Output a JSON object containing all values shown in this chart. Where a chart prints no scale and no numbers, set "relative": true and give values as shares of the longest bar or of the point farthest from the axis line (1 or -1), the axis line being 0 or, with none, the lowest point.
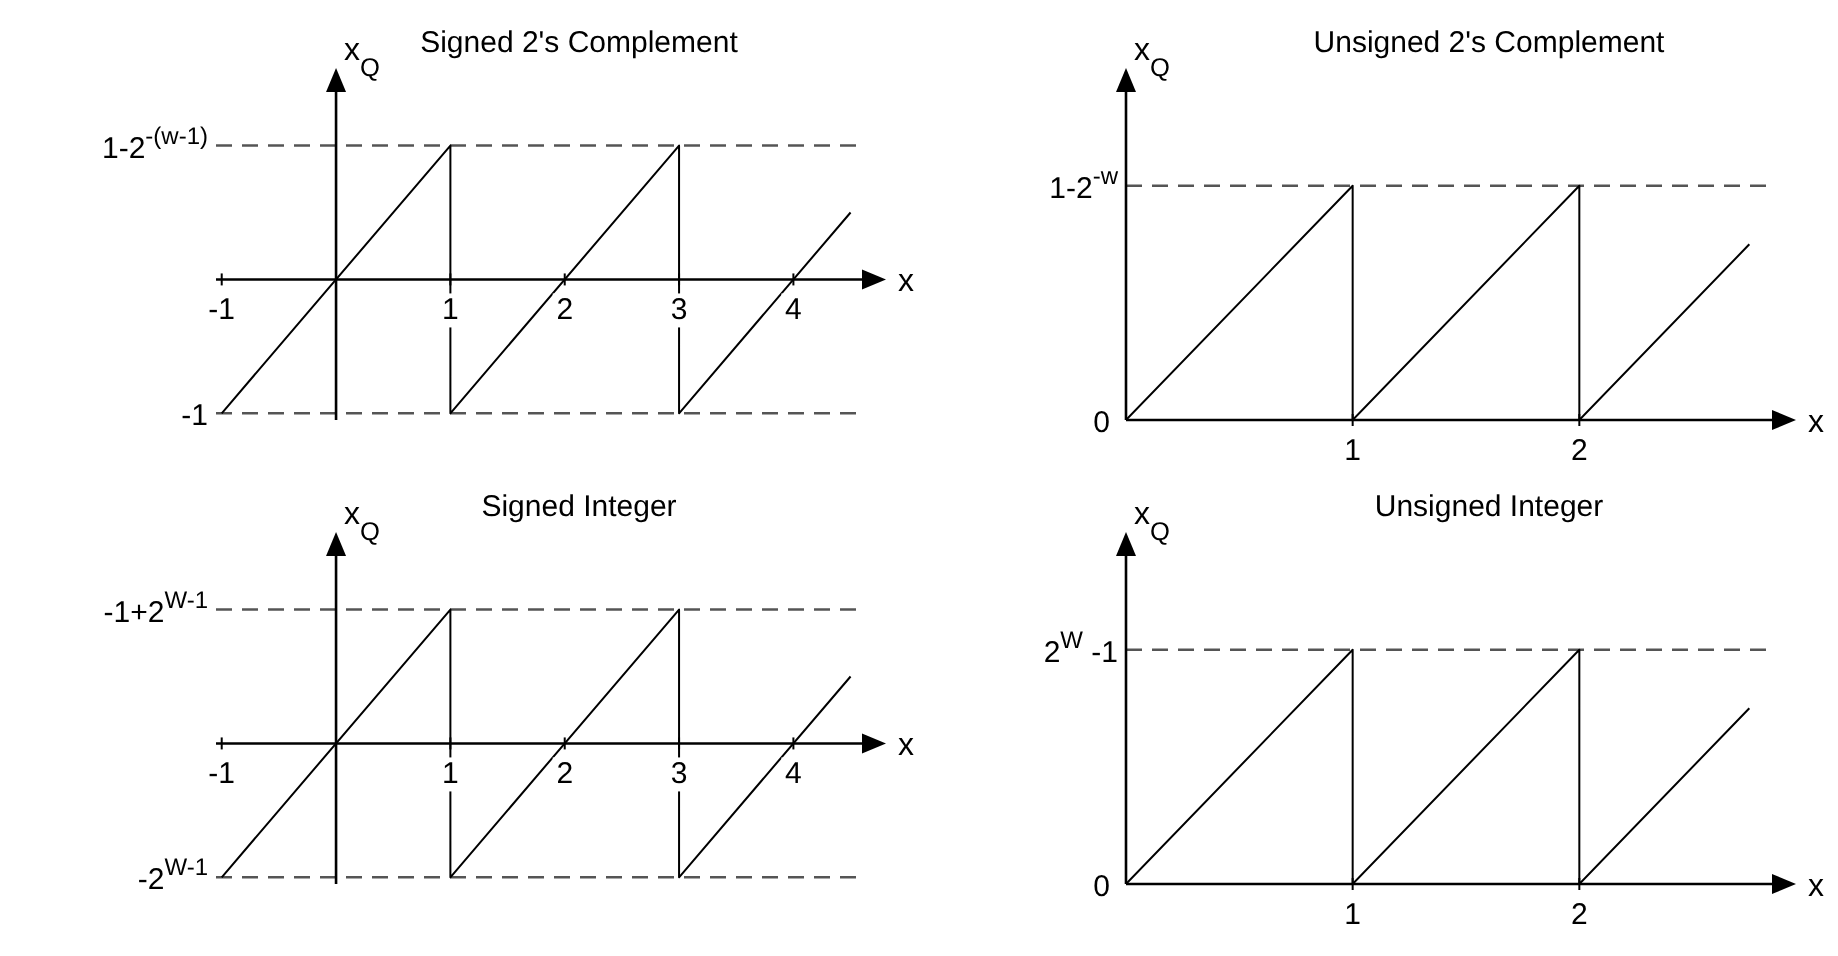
{
  "chart_data": [
    {
      "type": "line",
      "title": "Signed 2's Complement",
      "xlabel": "x",
      "ylabel": "x$_{Q}$",
      "color": "#000000",
      "marker": "none",
      "relative": true,
      "x": [
        -1,
        1,
        1,
        3,
        3,
        4.5
      ],
      "values": [
        -1,
        1,
        -1,
        1,
        -1,
        0.5
      ],
      "xlim": [
        -1.05,
        4.6
      ],
      "xticks": [
        -1,
        1,
        2,
        3,
        4
      ],
      "ref_lines": [
        {
          "axis": "y",
          "value": 1,
          "label": "1-2$^{-(w-1)}$",
          "line_style": "dashed",
          "color": "#555555"
        },
        {
          "axis": "y",
          "value": -1,
          "label": "-1",
          "line_style": "dashed",
          "color": "#555555"
        }
      ]
    },
    {
      "type": "line",
      "title": "Unsigned 2's Complement",
      "xlabel": "x",
      "ylabel": "x$_{Q}$",
      "color": "#000000",
      "marker": "none",
      "relative": true,
      "x": [
        0,
        1,
        1,
        2,
        2,
        2.75
      ],
      "values": [
        0,
        1,
        0,
        1,
        0,
        0.75
      ],
      "xlim": [
        0,
        2.85
      ],
      "xticks": [
        1,
        2
      ],
      "annotations": [
        {
          "text": "0",
          "x": 0,
          "y": 0
        }
      ],
      "ref_lines": [
        {
          "axis": "y",
          "value": 1,
          "label": "1-2$^{-w}$",
          "line_style": "dashed",
          "color": "#555555"
        }
      ]
    },
    {
      "type": "line",
      "title": "Signed Integer",
      "xlabel": "x",
      "ylabel": "x$_{Q}$",
      "color": "#000000",
      "marker": "none",
      "relative": true,
      "x": [
        -1,
        1,
        1,
        3,
        3,
        4.5
      ],
      "values": [
        -1,
        1,
        -1,
        1,
        -1,
        0.5
      ],
      "xlim": [
        -1.05,
        4.6
      ],
      "xticks": [
        -1,
        1,
        2,
        3,
        4
      ],
      "ref_lines": [
        {
          "axis": "y",
          "value": 1,
          "label": "-1+2$^{W-1}$",
          "line_style": "dashed",
          "color": "#555555"
        },
        {
          "axis": "y",
          "value": -1,
          "label": "-2$^{W-1}$",
          "line_style": "dashed",
          "color": "#555555"
        }
      ]
    },
    {
      "type": "line",
      "title": "Unsigned Integer",
      "xlabel": "x",
      "ylabel": "x$_{Q}$",
      "color": "#000000",
      "marker": "none",
      "relative": true,
      "x": [
        0,
        1,
        1,
        2,
        2,
        2.75
      ],
      "values": [
        0,
        1,
        0,
        1,
        0,
        0.75
      ],
      "xlim": [
        0,
        2.85
      ],
      "xticks": [
        1,
        2
      ],
      "annotations": [
        {
          "text": "0",
          "x": 0,
          "y": 0
        }
      ],
      "ref_lines": [
        {
          "axis": "y",
          "value": 1,
          "label": "2$^{W}$ -1",
          "line_style": "dashed",
          "color": "#555555"
        }
      ]
    }
  ]
}
